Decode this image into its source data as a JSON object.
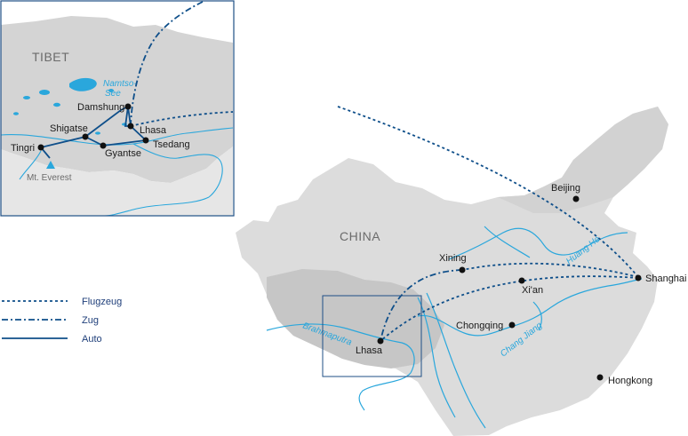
{
  "colors": {
    "route": "#0f4f8a",
    "land_main": "#dcdcdc",
    "land_dark": "#c4c4c4",
    "water": "#2aa7dc",
    "frame": "#1f4f86",
    "dot": "#111111",
    "peak": "#2aa7dc"
  },
  "main_map": {
    "country_label": "CHINA",
    "cities": {
      "beijing": "Beijing",
      "xining": "Xining",
      "shanghai": "Shanghai",
      "xian": "Xi'an",
      "chongqing": "Chongqing",
      "lhasa": "Lhasa",
      "hongkong": "Hongkong"
    },
    "rivers": {
      "huang_he": "Huang He",
      "chang_jiang": "Chang Jiang",
      "brahmaputra": "Brahmaputra"
    }
  },
  "inset_map": {
    "region_label": "TIBET",
    "lake_label_line1": "Namtso-",
    "lake_label_line2": "See",
    "cities": {
      "damshung": "Damshung",
      "lhasa": "Lhasa",
      "shigatse": "Shigatse",
      "tsedang": "Tsedang",
      "tingri": "Tingri",
      "gyantse": "Gyantse"
    },
    "peak": "Mt. Everest"
  },
  "legend": {
    "items": [
      {
        "label": "Flugzeug",
        "style": "dotted"
      },
      {
        "label": "Zug",
        "style": "dash-dot"
      },
      {
        "label": "Auto",
        "style": "solid"
      }
    ]
  }
}
